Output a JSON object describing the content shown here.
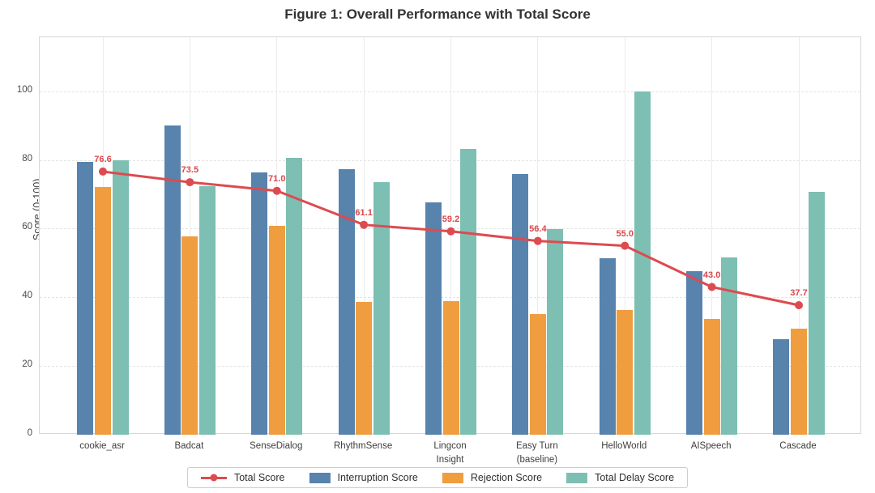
{
  "title": "Figure 1: Overall Performance with Total Score",
  "chart_data": {
    "type": "bar",
    "title": "Figure 1: Overall Performance with Total Score",
    "ylabel": "Score (0-100)",
    "xlabel": "",
    "categories": [
      "cookie_asr",
      "Badcat",
      "SenseDialog",
      "RhythmSense",
      "Lingcon\nInsight",
      "Easy Turn\n(baseline)",
      "HelloWorld",
      "AISpeech",
      "Cascade"
    ],
    "series": [
      {
        "name": "Interruption Score",
        "type": "bar",
        "color": "#5783ac",
        "values": [
          79.3,
          89.9,
          76.4,
          77.4,
          67.7,
          75.9,
          51.3,
          47.6,
          27.9
        ]
      },
      {
        "name": "Rejection Score",
        "type": "bar",
        "color": "#ef9d3f",
        "values": [
          72.2,
          57.8,
          60.9,
          38.6,
          38.9,
          35.1,
          36.2,
          33.8,
          30.9
        ]
      },
      {
        "name": "Total Delay Score",
        "type": "bar",
        "color": "#7dbfb2",
        "values": [
          79.9,
          72.4,
          80.5,
          73.5,
          83.2,
          59.9,
          100.0,
          51.5,
          70.7
        ]
      },
      {
        "name": "Total Score",
        "type": "line",
        "color": "#dc4b50",
        "data_labels": true,
        "values": [
          76.6,
          73.5,
          71.0,
          61.1,
          59.2,
          56.4,
          55.0,
          43.0,
          37.7
        ]
      }
    ],
    "legend_order": [
      "Total Score",
      "Interruption Score",
      "Rejection Score",
      "Total Delay Score"
    ],
    "legend_position": "bottom-center",
    "ylim": [
      0,
      115.7
    ],
    "yticks": [
      0,
      20,
      40,
      60,
      80,
      100
    ],
    "grid": {
      "horizontal": "dashed",
      "vertical": "solid"
    },
    "colors": {
      "background": "#ffffff",
      "spine": "#d7d7d7",
      "grid_h": "#e4e4e4",
      "grid_v": "#ebebeb",
      "title_text": "#333333",
      "tick_text": "#4a4a4a",
      "data_label_text": "#d9484d"
    }
  }
}
